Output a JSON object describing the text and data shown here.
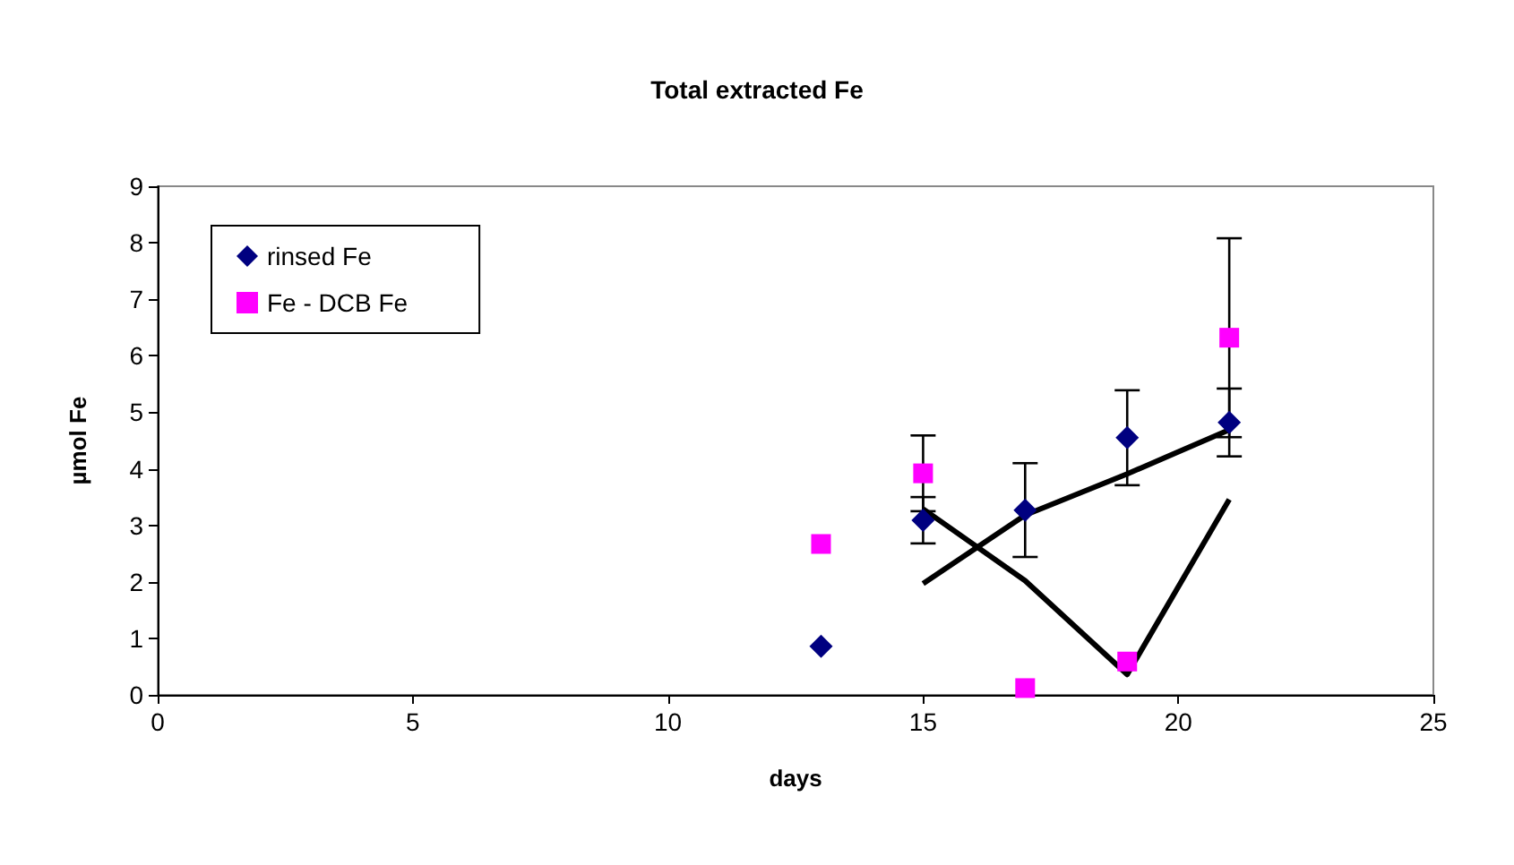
{
  "chart_data": {
    "type": "scatter",
    "title": "Total extracted Fe",
    "xlabel": "days",
    "ylabel": "µmol Fe",
    "xlim": [
      0,
      25
    ],
    "xticks": [
      0,
      5,
      10,
      15,
      20,
      25
    ],
    "ylim": [
      0,
      9
    ],
    "yticks": [
      0,
      1,
      2,
      3,
      4,
      5,
      6,
      7,
      8,
      9
    ],
    "grid": false,
    "legend": "top left",
    "series": [
      {
        "name": "rinsed Fe",
        "color": "#000080",
        "marker": "diamond",
        "x": [
          13,
          15,
          17,
          19,
          21
        ],
        "values": [
          0.86,
          3.09,
          3.27,
          4.55,
          4.82
        ],
        "errors": [
          null,
          0.41,
          0.83,
          0.84,
          0.6
        ]
      },
      {
        "name": "Fe - DCB Fe",
        "color": "#ff00ff",
        "marker": "square",
        "x": [
          13,
          15,
          17,
          19,
          21
        ],
        "values": [
          2.67,
          3.92,
          0.12,
          0.59,
          6.32
        ],
        "errors": [
          null,
          0.67,
          null,
          null,
          1.76
        ]
      },
      {
        "type": "line",
        "color": "#000000",
        "marker": "none",
        "x": [
          15,
          17,
          19,
          21
        ],
        "values": [
          1.97,
          3.18,
          3.91,
          4.69
        ]
      },
      {
        "type": "line",
        "color": "#000000",
        "marker": "none",
        "x": [
          15,
          17,
          19,
          21
        ],
        "values": [
          3.29,
          2.02,
          0.36,
          3.46
        ]
      }
    ]
  }
}
